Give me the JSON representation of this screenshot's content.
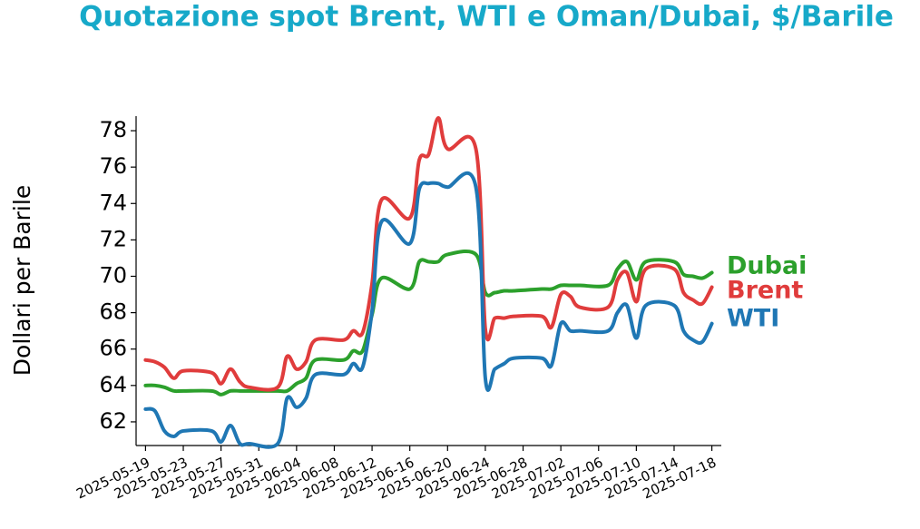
{
  "chart_data": {
    "type": "line",
    "title": "Quotazione spot Brent, WTI e Oman/Dubai, $/Barile",
    "y_label": "Dollari per Barile",
    "x": [
      "2025-05-19",
      "2025-05-20",
      "2025-05-21",
      "2025-05-22",
      "2025-05-23",
      "2025-05-26",
      "2025-05-27",
      "2025-05-28",
      "2025-05-29",
      "2025-05-30",
      "2025-06-02",
      "2025-06-03",
      "2025-06-04",
      "2025-06-05",
      "2025-06-06",
      "2025-06-09",
      "2025-06-10",
      "2025-06-11",
      "2025-06-12",
      "2025-06-13",
      "2025-06-16",
      "2025-06-17",
      "2025-06-18",
      "2025-06-19",
      "2025-06-20",
      "2025-06-23",
      "2025-06-24",
      "2025-06-25",
      "2025-06-26",
      "2025-06-27",
      "2025-06-30",
      "2025-07-01",
      "2025-07-02",
      "2025-07-03",
      "2025-07-04",
      "2025-07-07",
      "2025-07-08",
      "2025-07-09",
      "2025-07-10",
      "2025-07-11",
      "2025-07-14",
      "2025-07-15",
      "2025-07-16",
      "2025-07-17",
      "2025-07-18"
    ],
    "series": [
      {
        "name": "Dubai",
        "color": "#2ca02c",
        "values": [
          64.0,
          64.0,
          63.9,
          63.7,
          63.7,
          63.7,
          63.5,
          63.7,
          63.7,
          63.7,
          63.7,
          63.7,
          64.1,
          64.4,
          65.4,
          65.4,
          65.9,
          65.9,
          67.9,
          69.9,
          69.3,
          70.8,
          70.8,
          70.8,
          71.2,
          71.2,
          69.1,
          69.1,
          69.2,
          69.2,
          69.3,
          69.3,
          69.5,
          69.5,
          69.5,
          69.5,
          70.4,
          70.8,
          69.8,
          70.8,
          70.8,
          70.1,
          70.0,
          69.9,
          70.2
        ]
      },
      {
        "name": "Brent",
        "color": "#e03c3c",
        "values": [
          65.4,
          65.3,
          65.0,
          64.4,
          64.8,
          64.7,
          64.1,
          64.9,
          64.2,
          63.9,
          63.9,
          65.6,
          64.9,
          65.3,
          66.5,
          66.5,
          67.0,
          66.9,
          69.6,
          74.2,
          73.2,
          76.4,
          76.7,
          78.7,
          77.0,
          77.0,
          67.1,
          67.7,
          67.7,
          67.8,
          67.8,
          67.2,
          69.0,
          68.9,
          68.3,
          68.3,
          69.8,
          70.2,
          68.6,
          70.4,
          70.4,
          69.1,
          68.7,
          68.5,
          69.4
        ]
      },
      {
        "name": "WTI",
        "color": "#1f77b4",
        "values": [
          62.7,
          62.6,
          61.5,
          61.2,
          61.5,
          61.5,
          60.9,
          61.8,
          60.8,
          60.8,
          60.8,
          63.3,
          62.8,
          63.3,
          64.6,
          64.6,
          65.2,
          65.0,
          68.1,
          73.0,
          71.8,
          74.8,
          75.1,
          75.1,
          74.9,
          74.9,
          64.4,
          64.9,
          65.2,
          65.5,
          65.5,
          65.1,
          67.4,
          67.0,
          67.0,
          67.0,
          68.0,
          68.4,
          66.6,
          68.4,
          68.4,
          67.0,
          66.5,
          66.4,
          67.4
        ]
      }
    ],
    "xlim": [
      "2025-05-18",
      "2025-07-19"
    ],
    "xticks": [
      "2025-05-19",
      "2025-05-23",
      "2025-05-27",
      "2025-05-31",
      "2025-06-04",
      "2025-06-08",
      "2025-06-12",
      "2025-06-16",
      "2025-06-20",
      "2025-06-24",
      "2025-06-28",
      "2025-07-02",
      "2025-07-06",
      "2025-07-10",
      "2025-07-14",
      "2025-07-18"
    ],
    "ylim": [
      60.7,
      78.8
    ],
    "yticks": [
      62,
      64,
      66,
      68,
      70,
      72,
      74,
      76,
      78
    ],
    "grid": false
  }
}
